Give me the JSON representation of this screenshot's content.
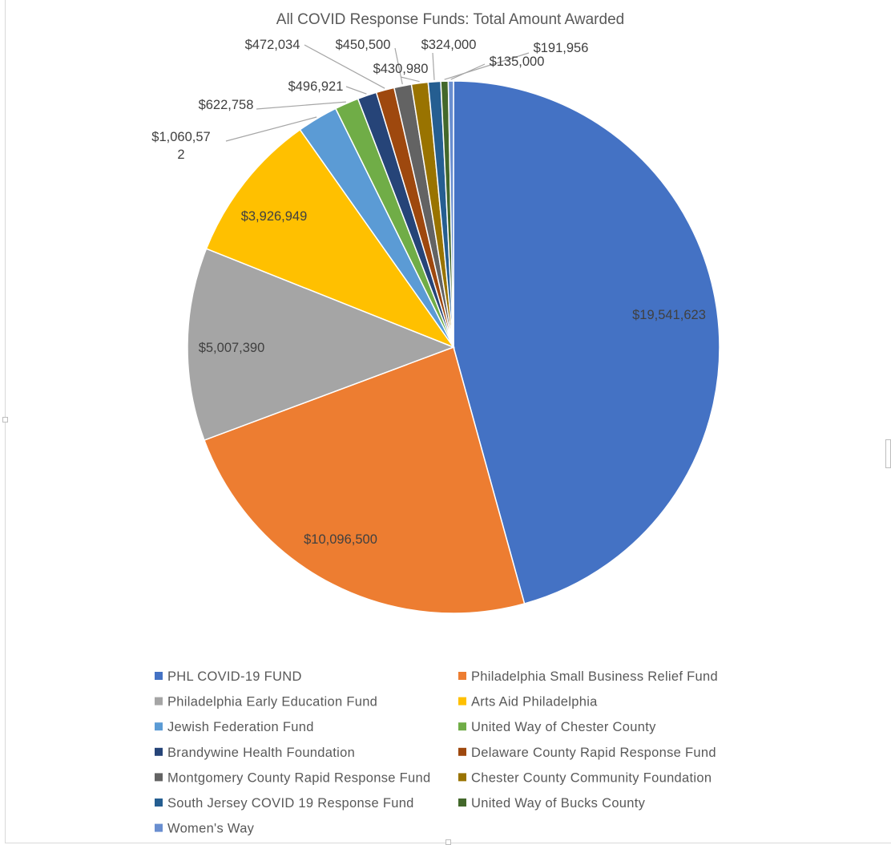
{
  "chart_data": {
    "type": "pie",
    "title": "All COVID Response Funds: Total Amount Awarded",
    "legend_position": "bottom",
    "slices": [
      {
        "name": "PHL COVID-19 FUND",
        "value": 19541623,
        "label": "$19,541,623",
        "color": "#4472C4"
      },
      {
        "name": "Philadelphia Small Business Relief Fund",
        "value": 10096500,
        "label": "$10,096,500",
        "color": "#ED7D31"
      },
      {
        "name": "Philadelphia Early Education Fund",
        "value": 5007390,
        "label": "$5,007,390",
        "color": "#A5A5A5"
      },
      {
        "name": "Arts Aid Philadelphia",
        "value": 3926949,
        "label": "$3,926,949",
        "color": "#FFC000"
      },
      {
        "name": "Jewish Federation Fund",
        "value": 1060572,
        "label": "$1,060,572",
        "color": "#5B9BD5"
      },
      {
        "name": "United Way of Chester County",
        "value": 622758,
        "label": "$622,758",
        "color": "#70AD47"
      },
      {
        "name": "Brandywine Health Foundation",
        "value": 496921,
        "label": "$496,921",
        "color": "#264478"
      },
      {
        "name": "Delaware County Rapid Response Fund",
        "value": 472034,
        "label": "$472,034",
        "color": "#9E480E"
      },
      {
        "name": "Montgomery County Rapid Response Fund",
        "value": 450500,
        "label": "$450,500",
        "color": "#636363"
      },
      {
        "name": "Chester County Community Foundation",
        "value": 430980,
        "label": "$430,980",
        "color": "#997300"
      },
      {
        "name": "South Jersey COVID 19 Response Fund",
        "value": 324000,
        "label": "$324,000",
        "color": "#255E91"
      },
      {
        "name": "United Way of Bucks County",
        "value": 191956,
        "label": "$191,956",
        "color": "#43682B"
      },
      {
        "name": "Women's Way",
        "value": 135000,
        "label": "$135,000",
        "color": "#698ED0"
      }
    ]
  }
}
